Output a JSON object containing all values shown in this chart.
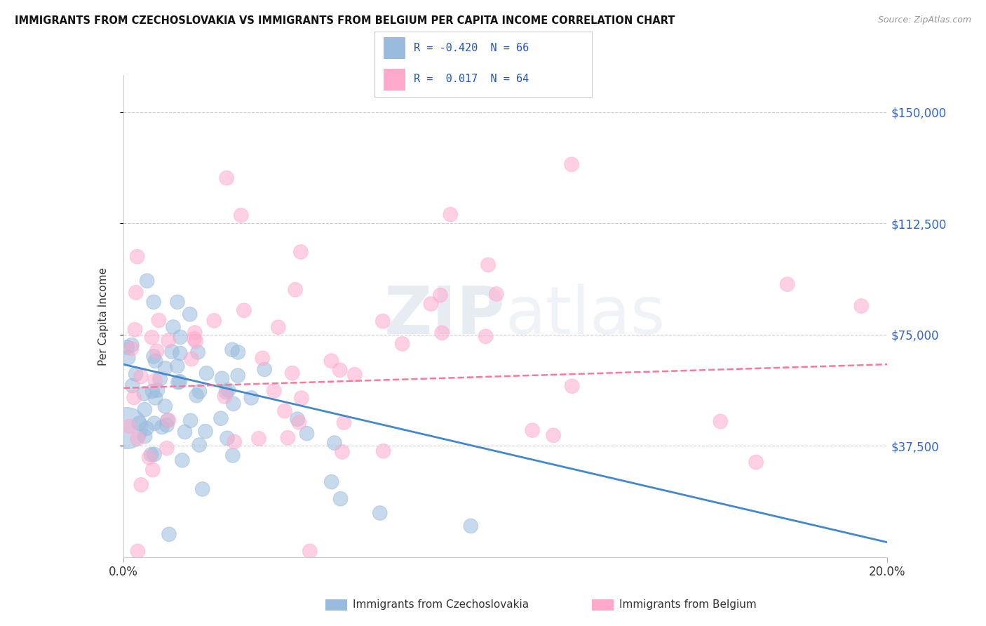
{
  "title": "IMMIGRANTS FROM CZECHOSLOVAKIA VS IMMIGRANTS FROM BELGIUM PER CAPITA INCOME CORRELATION CHART",
  "source": "Source: ZipAtlas.com",
  "ylabel": "Per Capita Income",
  "color_blue": "#99BBDD",
  "color_pink": "#FFAACC",
  "color_blue_line": "#4488CC",
  "color_pink_line": "#FF7799",
  "yticks": [
    "$150,000",
    "$112,500",
    "$75,000",
    "$37,500"
  ],
  "ytick_values": [
    150000,
    112500,
    75000,
    37500
  ],
  "ylim": [
    0,
    162500
  ],
  "xlim": [
    0.0,
    0.205
  ],
  "legend_text1": "R = -0.420  N = 66",
  "legend_text2": "R =  0.017  N = 64",
  "watermark_text": "ZIPatlas",
  "bottom_label_blue": "Immigrants from Czechoslovakia",
  "bottom_label_pink": "Immigrants from Belgium"
}
